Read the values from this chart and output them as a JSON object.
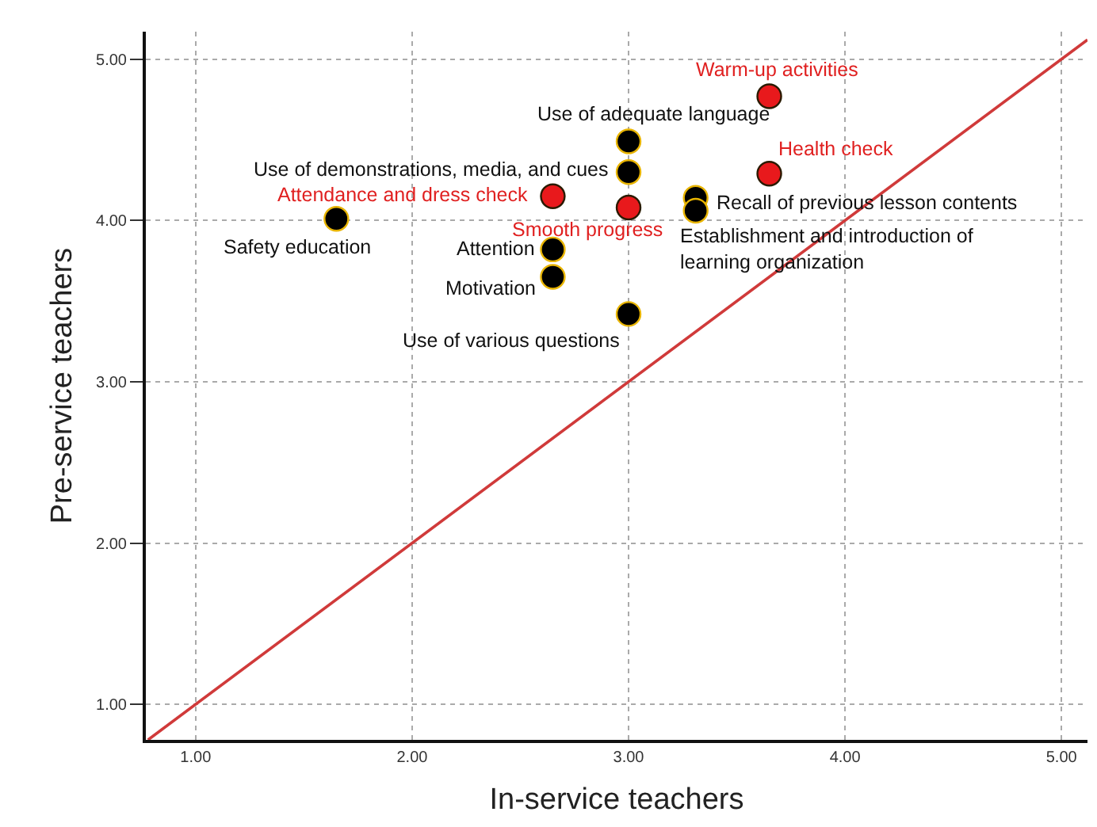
{
  "chart_data": {
    "type": "scatter",
    "xlabel": "In-service teachers",
    "ylabel": "Pre-service teachers",
    "x": [
      3.65,
      3.65,
      3.0,
      3.0,
      2.65,
      3.0,
      3.31,
      3.31,
      1.65,
      2.65,
      2.65,
      3.0
    ],
    "series": [
      {
        "values": [
          4.77,
          4.29,
          4.49,
          4.3,
          4.15,
          4.08,
          4.14,
          4.06,
          4.01,
          3.82,
          3.65,
          3.42
        ],
        "colors": [
          "#e8191c",
          "#e8191c",
          "#000000",
          "#000000",
          "#e8191c",
          "#e8191c",
          "#000000",
          "#000000",
          "#000000",
          "#000000",
          "#000000",
          "#000000"
        ],
        "marker": "circle"
      },
      {
        "type": "line",
        "x": [
          0.78,
          5.12
        ],
        "values": [
          0.78,
          5.12
        ],
        "color": "#d03a3a",
        "line_style": "solid",
        "marker": "none"
      }
    ],
    "annotations": [
      {
        "text": "Warm-up activities",
        "x": 3.65,
        "y": 4.77
      },
      {
        "text": "Health check",
        "x": 3.65,
        "y": 4.29
      },
      {
        "text": "Use of adequate language",
        "x": 3.0,
        "y": 4.49
      },
      {
        "text": "Use of demonstrations, media, and cues",
        "x": 3.0,
        "y": 4.3
      },
      {
        "text": "Attendance and dress check",
        "x": 2.65,
        "y": 4.15
      },
      {
        "text": "Smooth progress",
        "x": 3.0,
        "y": 4.08
      },
      {
        "text": "Recall of previous lesson contents",
        "x": 3.31,
        "y": 4.14
      },
      {
        "text": "Establishment and introduction of\nlearning organization",
        "x": 3.31,
        "y": 4.06
      },
      {
        "text": "Safety education",
        "x": 1.65,
        "y": 4.01
      },
      {
        "text": "Attention",
        "x": 2.65,
        "y": 3.82
      },
      {
        "text": "Motivation",
        "x": 2.65,
        "y": 3.65
      },
      {
        "text": "Use of various questions",
        "x": 3.0,
        "y": 3.42
      }
    ],
    "xlim": [
      0.77,
      5.12
    ],
    "ylim": [
      0.78,
      5.17
    ],
    "xticks": [
      {
        "value": 1,
        "label": "1.00"
      },
      {
        "value": 2,
        "label": "2.00"
      },
      {
        "value": 3,
        "label": "3.00"
      },
      {
        "value": 4,
        "label": "4.00"
      },
      {
        "value": 5,
        "label": "5.00"
      }
    ],
    "yticks": [
      {
        "value": 1,
        "label": "1.00"
      },
      {
        "value": 2,
        "label": "2.00"
      },
      {
        "value": 3,
        "label": "3.00"
      },
      {
        "value": 4,
        "label": "4.00"
      },
      {
        "value": 5,
        "label": "5.00"
      }
    ],
    "grid": true
  }
}
